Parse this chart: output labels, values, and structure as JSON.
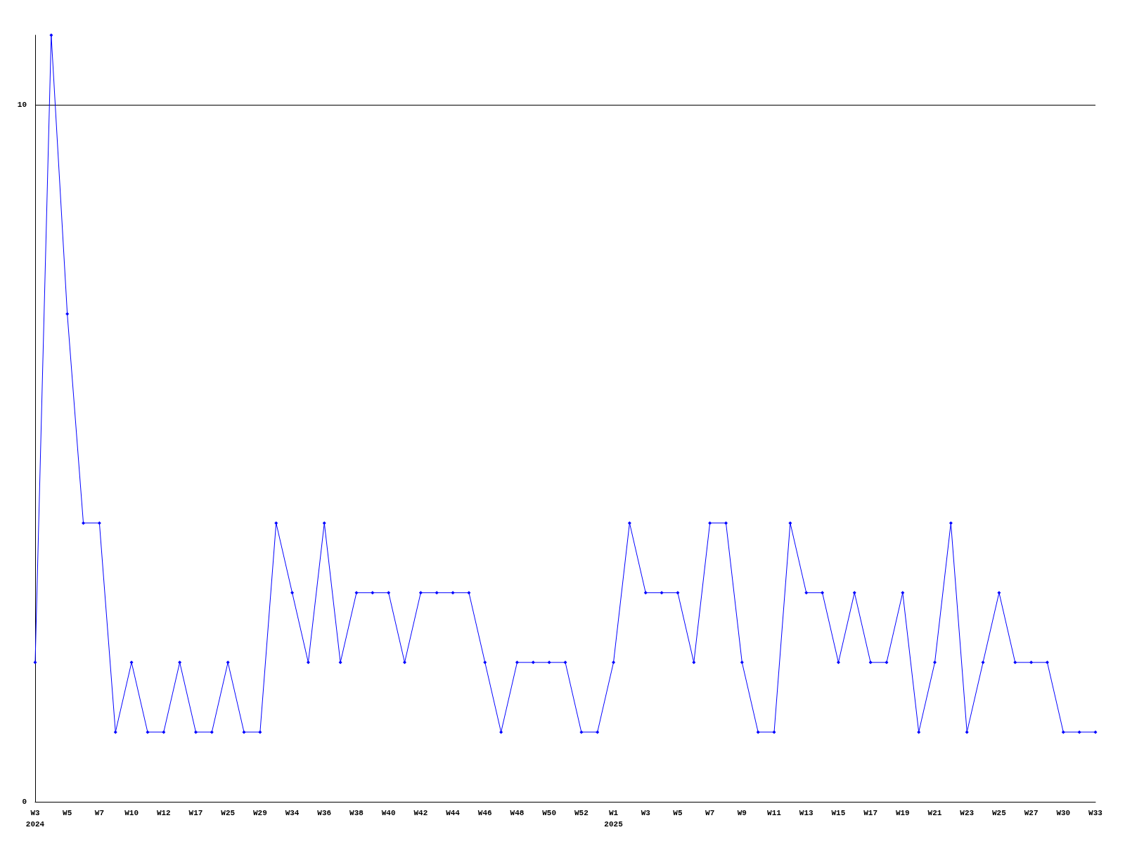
{
  "chart_data": {
    "type": "line",
    "categories": [
      "W3\n2024",
      null,
      "W5",
      null,
      "W7",
      null,
      "W10",
      null,
      "W12",
      null,
      "W17",
      null,
      "W25",
      null,
      "W29",
      null,
      "W34",
      null,
      "W36",
      null,
      "W38",
      null,
      "W40",
      null,
      "W42",
      null,
      "W44",
      null,
      "W46",
      null,
      "W48",
      null,
      "W50",
      null,
      "W52",
      null,
      "W1\n2025",
      null,
      "W3",
      null,
      "W5",
      null,
      "W7",
      null,
      "W9",
      null,
      "W11",
      null,
      "W13",
      null,
      "W15",
      null,
      "W17",
      null,
      "W19",
      null,
      "W21",
      null,
      "W23",
      null,
      "W25",
      null,
      "W27",
      null,
      "W30",
      null,
      "W33"
    ],
    "series": [
      {
        "color": "#0000ff",
        "values": [
          2,
          11,
          7,
          4,
          4,
          1,
          2,
          1,
          1,
          2,
          1,
          1,
          2,
          1,
          1,
          4,
          3,
          2,
          4,
          2,
          3,
          3,
          3,
          2,
          3,
          3,
          3,
          3,
          2,
          1,
          2,
          2,
          2,
          2,
          1,
          1,
          2,
          4,
          3,
          3,
          3,
          2,
          4,
          4,
          2,
          1,
          1,
          4,
          3,
          3,
          2,
          3,
          2,
          2,
          3,
          1,
          2,
          4,
          1,
          2,
          3,
          2,
          2,
          2,
          1,
          1,
          1
        ]
      }
    ],
    "ylim": [
      0,
      11
    ],
    "yticks": [
      0,
      10
    ],
    "grid": "y",
    "marker": "diamond",
    "line_style": "solid"
  }
}
